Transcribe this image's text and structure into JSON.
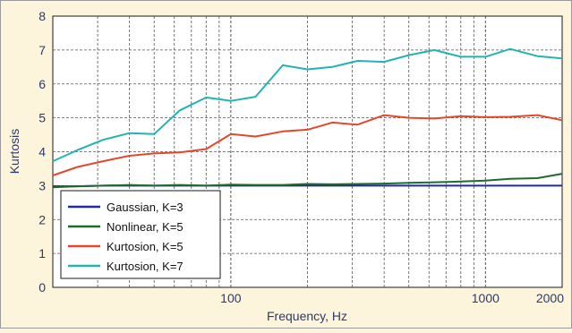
{
  "colors": {
    "page_background": "#fdf4dc",
    "frame": "#9a9a9a",
    "plot_background": "#ffffff",
    "grid": "#555555",
    "text": "#2b3a6b"
  },
  "chart_data": {
    "type": "line",
    "title": "",
    "xlabel": "Frequency, Hz",
    "ylabel": "Kurtosis",
    "xscale": "log",
    "xlim": [
      20,
      2000
    ],
    "ylim": [
      0,
      8
    ],
    "x_tick_labels": [
      {
        "value": 100,
        "label": "100"
      },
      {
        "value": 1000,
        "label": "1000"
      },
      {
        "value": 2000,
        "label": "2000"
      }
    ],
    "y_ticks": [
      0,
      1,
      2,
      3,
      4,
      5,
      6,
      7,
      8
    ],
    "grid": true,
    "legend_position": "bottom-left",
    "series": [
      {
        "name": "Gaussian, K=3",
        "color": "#1f2aa3",
        "x": [
          20,
          25,
          31.5,
          40,
          50,
          63,
          80,
          100,
          125,
          160,
          200,
          250,
          315,
          400,
          500,
          630,
          800,
          1000,
          1250,
          1600,
          2000
        ],
        "y": [
          2.98,
          2.98,
          3.0,
          3.0,
          3.0,
          3.0,
          3.0,
          3.0,
          3.0,
          3.0,
          3.0,
          3.0,
          3.0,
          3.0,
          3.0,
          3.0,
          3.0,
          3.0,
          3.0,
          3.0,
          3.0
        ]
      },
      {
        "name": "Nonlinear, K=5",
        "color": "#1e6b2a",
        "x": [
          20,
          25,
          31.5,
          40,
          50,
          63,
          80,
          100,
          125,
          160,
          200,
          250,
          315,
          400,
          500,
          630,
          800,
          1000,
          1250,
          1600,
          2000
        ],
        "y": [
          2.95,
          2.98,
          3.0,
          3.02,
          3.0,
          3.02,
          3.0,
          3.03,
          3.02,
          3.02,
          3.05,
          3.04,
          3.05,
          3.06,
          3.08,
          3.1,
          3.12,
          3.15,
          3.2,
          3.22,
          3.35
        ]
      },
      {
        "name": "Kurtosion, K=5",
        "color": "#e4482b",
        "x": [
          20,
          25,
          31.5,
          40,
          50,
          63,
          80,
          100,
          125,
          160,
          200,
          250,
          315,
          400,
          500,
          630,
          800,
          1000,
          1250,
          1600,
          2000
        ],
        "y": [
          3.3,
          3.55,
          3.72,
          3.88,
          3.95,
          3.98,
          4.08,
          4.52,
          4.45,
          4.6,
          4.65,
          4.86,
          4.8,
          5.08,
          5.0,
          4.98,
          5.05,
          5.02,
          5.03,
          5.08,
          4.93
        ]
      },
      {
        "name": "Kurtosion, K=7",
        "color": "#22b3b3",
        "x": [
          20,
          25,
          31.5,
          40,
          50,
          63,
          80,
          100,
          125,
          160,
          200,
          250,
          315,
          400,
          500,
          630,
          800,
          1000,
          1250,
          1600,
          2000
        ],
        "y": [
          3.72,
          4.05,
          4.35,
          4.55,
          4.52,
          5.22,
          5.6,
          5.5,
          5.62,
          6.55,
          6.43,
          6.5,
          6.68,
          6.65,
          6.85,
          7.0,
          6.8,
          6.8,
          7.03,
          6.82,
          6.75
        ]
      }
    ]
  }
}
